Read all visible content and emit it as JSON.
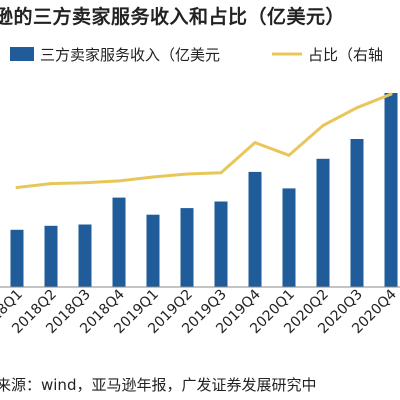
{
  "title": "逊的三方卖家服务收入和占比（亿美元）",
  "source": "来源：wind，亚马逊年报，广发证券发展研究中",
  "chart_data": {
    "type": "bar",
    "categories": [
      "2018Q1",
      "2018Q2",
      "2018Q3",
      "2018Q4",
      "2019Q1",
      "2019Q2",
      "2019Q3",
      "2019Q4",
      "2020Q1",
      "2020Q2",
      "2020Q3",
      "2020Q4"
    ],
    "series": [
      {
        "name": "三方卖家服务收入（亿美元",
        "type": "bar",
        "color": "#1f5c99",
        "values": [
          87,
          93,
          95,
          136,
          110,
          120,
          130,
          175,
          150,
          195,
          225,
          295
        ]
      },
      {
        "name": "占比（右轴",
        "type": "line",
        "color": "#e8c75a",
        "values": [
          0.33,
          0.343,
          0.346,
          0.352,
          0.365,
          0.375,
          0.379,
          0.479,
          0.437,
          0.536,
          0.595,
          0.64
        ]
      }
    ],
    "ylim": [
      0,
      330
    ],
    "y2lim": [
      0,
      0.72
    ],
    "legend_position": "top",
    "grid": false
  }
}
